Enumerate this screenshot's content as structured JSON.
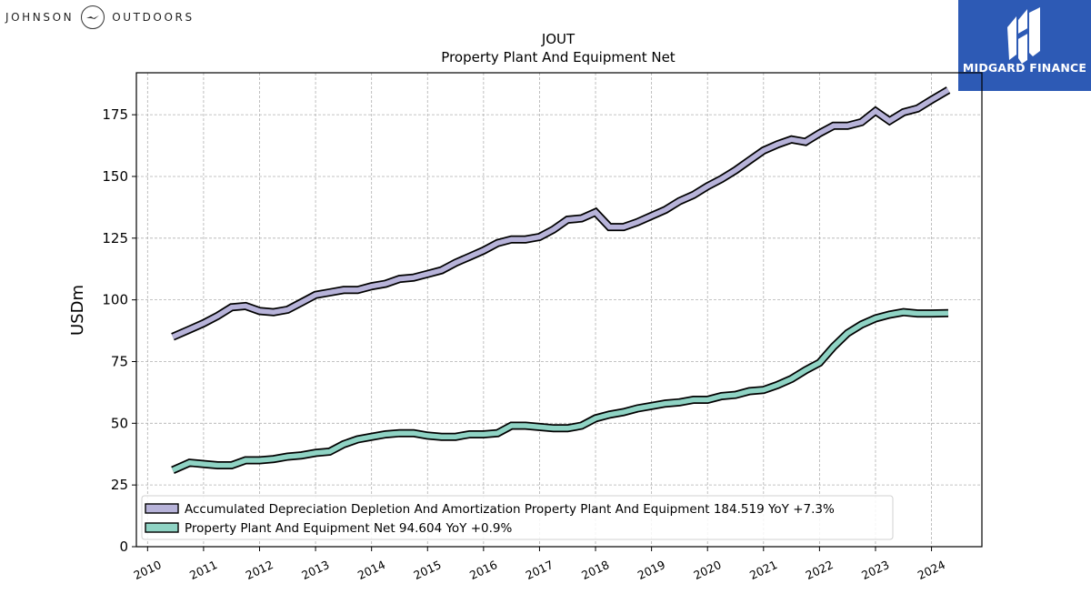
{
  "branding": {
    "company_left": "JOHNSON",
    "company_right": "OUTDOORS",
    "publisher": "MIDGARD FINANCE",
    "publisher_color": "#2d5ab5"
  },
  "chart_data": {
    "type": "line",
    "title": "JOUT",
    "subtitle": "Property Plant And Equipment Net",
    "ylabel": "USDm",
    "xlabel": "",
    "xlim": [
      2009.8,
      2024.9
    ],
    "ylim": [
      0,
      192
    ],
    "grid": true,
    "legend_position": "lower-left",
    "x_ticks": [
      "2010",
      "2011",
      "2012",
      "2013",
      "2014",
      "2015",
      "2016",
      "2017",
      "2018",
      "2019",
      "2020",
      "2021",
      "2022",
      "2023",
      "2024"
    ],
    "y_ticks": [
      "0",
      "25",
      "50",
      "75",
      "100",
      "125",
      "150",
      "175"
    ],
    "x": [
      2010.45,
      2010.75,
      2011.0,
      2011.25,
      2011.5,
      2011.75,
      2012.0,
      2012.25,
      2012.5,
      2012.75,
      2013.0,
      2013.25,
      2013.5,
      2013.75,
      2014.0,
      2014.25,
      2014.5,
      2014.75,
      2015.0,
      2015.25,
      2015.5,
      2015.75,
      2016.0,
      2016.25,
      2016.5,
      2016.75,
      2017.0,
      2017.25,
      2017.5,
      2017.75,
      2018.0,
      2018.25,
      2018.5,
      2018.75,
      2019.0,
      2019.25,
      2019.5,
      2019.75,
      2020.0,
      2020.25,
      2020.5,
      2020.75,
      2021.0,
      2021.25,
      2021.5,
      2021.75,
      2022.0,
      2022.25,
      2022.5,
      2022.75,
      2023.0,
      2023.25,
      2023.5,
      2023.75,
      2024.0,
      2024.3
    ],
    "series": [
      {
        "name": "Accumulated Depreciation Depletion And Amortization Property Plant And Equipment",
        "legend_text": "Accumulated Depreciation Depletion And Amortization Property Plant And Equipment  184.519 YoY +7.3%",
        "color": "#b7b3d9",
        "values": [
          85,
          88,
          90.5,
          93.5,
          97,
          97.5,
          95.5,
          95,
          96,
          99,
          102,
          103,
          104,
          104,
          105.5,
          106.5,
          108.5,
          109,
          110.5,
          112,
          115,
          117.5,
          120,
          123,
          124.5,
          124.5,
          125.5,
          128.5,
          132.5,
          133,
          135.5,
          129.5,
          129.5,
          131.5,
          134,
          136.5,
          140,
          142.5,
          146,
          149,
          152.5,
          156.5,
          160.5,
          163,
          165,
          164,
          167.5,
          170.5,
          170.5,
          172,
          176.5,
          172.5,
          176,
          177.5,
          181,
          185
        ]
      },
      {
        "name": "Property Plant And Equipment Net",
        "legend_text": "Property Plant And Equipment Net  94.604 YoY +0.9%",
        "color": "#8fd3c4",
        "values": [
          31,
          34,
          33.5,
          33,
          33,
          35,
          35,
          35.5,
          36.5,
          37,
          38,
          38.5,
          41.5,
          43.5,
          44.5,
          45.5,
          46,
          46,
          45,
          44.5,
          44.5,
          45.5,
          45.5,
          46,
          49,
          49,
          48.5,
          48,
          48,
          49,
          52,
          53.5,
          54.5,
          56,
          57,
          58,
          58.5,
          59.5,
          59.5,
          61,
          61.5,
          63,
          63.5,
          65.5,
          68,
          71.5,
          74.5,
          81,
          86.5,
          90,
          92.5,
          94,
          95,
          94.5,
          94.5,
          94.6
        ]
      }
    ]
  }
}
